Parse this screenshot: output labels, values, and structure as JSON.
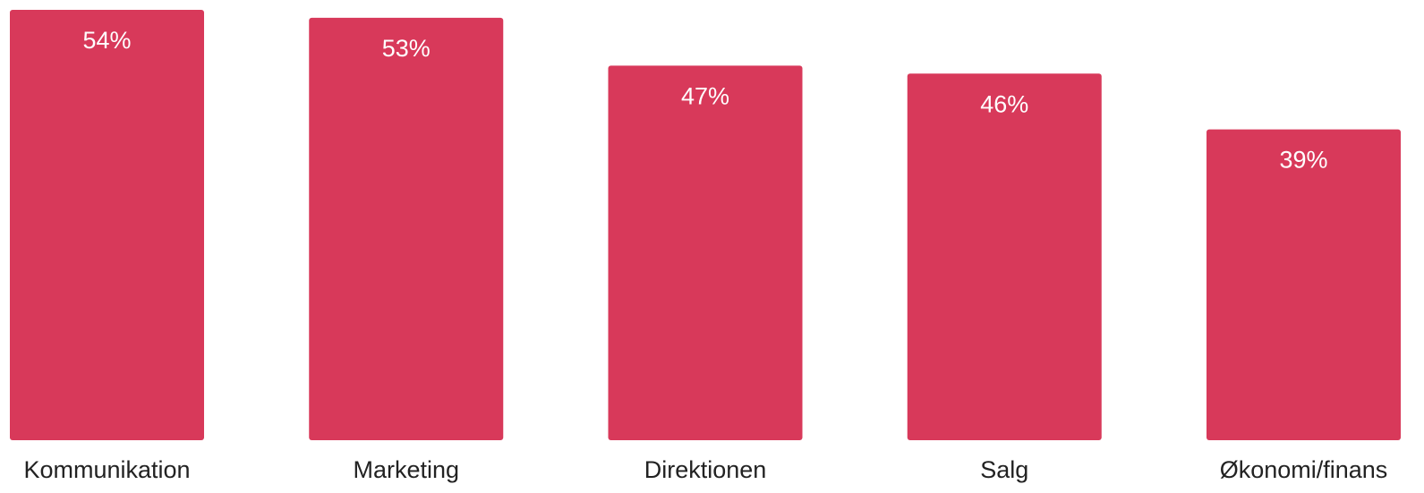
{
  "chart_data": {
    "type": "bar",
    "categories": [
      "Kommunikation",
      "Marketing",
      "Direktionen",
      "Salg",
      "Økonomi/finans"
    ],
    "values": [
      54,
      53,
      47,
      46,
      39
    ],
    "value_labels": [
      "54%",
      "53%",
      "47%",
      "46%",
      "39%"
    ],
    "color": "#d8395a"
  }
}
